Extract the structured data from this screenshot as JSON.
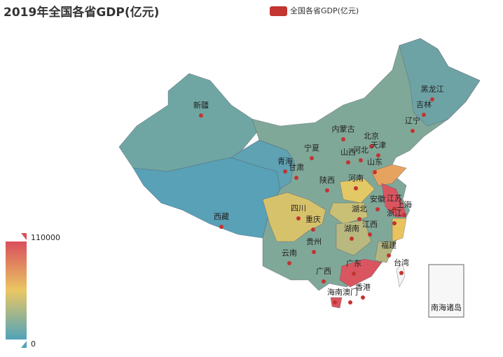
{
  "header": {
    "title": "2019年全国各省GDP(亿元)"
  },
  "legend": {
    "label": "全国各省GDP(亿元)"
  },
  "visual_map": {
    "max": 110000,
    "min": 0
  },
  "provinces": [
    "新疆",
    "西藏",
    "青海",
    "甘肃",
    "宁夏",
    "内蒙古",
    "黑龙江",
    "吉林",
    "辽宁",
    "北京",
    "天津",
    "河北",
    "山西",
    "山东",
    "河南",
    "陕西",
    "江苏",
    "安徽",
    "上海",
    "浙江",
    "湖北",
    "四川",
    "重庆",
    "湖南",
    "江西",
    "贵州",
    "云南",
    "福建",
    "台湾",
    "广西",
    "广东",
    "香港",
    "澳门",
    "海南"
  ],
  "inset": {
    "label": "南海诸岛"
  }
}
